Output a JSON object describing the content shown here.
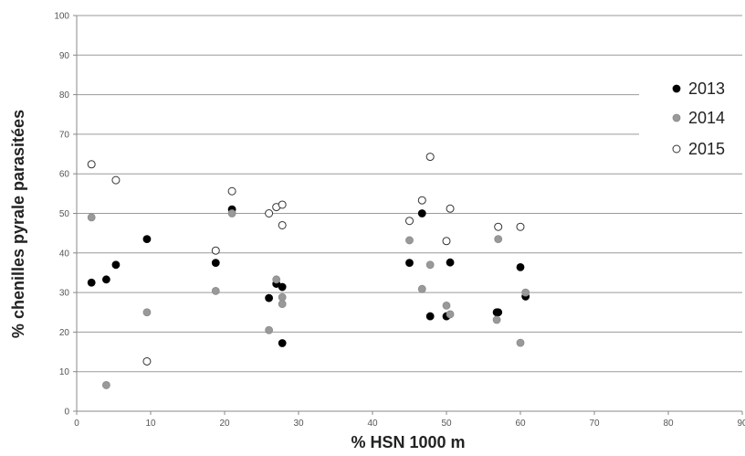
{
  "chart_data": {
    "type": "scatter",
    "xlabel": "% HSN 1000 m",
    "ylabel": "% chenilles pyrale parasitées",
    "xlim": [
      0,
      90
    ],
    "ylim": [
      0,
      100
    ],
    "x_ticks": [
      "0",
      "10",
      "20",
      "30",
      "40",
      "50",
      "60",
      "70",
      "80",
      "90"
    ],
    "y_ticks": [
      "0",
      "10",
      "20",
      "30",
      "40",
      "50",
      "60",
      "70",
      "80",
      "90",
      "100"
    ],
    "grid": "horizontal",
    "legend_position": "right",
    "series": [
      {
        "name": "2013",
        "color": "#000000",
        "marker": "filled-circle",
        "points": [
          [
            2,
            32.5
          ],
          [
            4,
            33.3
          ],
          [
            5.3,
            37
          ],
          [
            9.5,
            43.5
          ],
          [
            18.8,
            37.5
          ],
          [
            21,
            51
          ],
          [
            26,
            28.6
          ],
          [
            27,
            32.2
          ],
          [
            27.8,
            31.4
          ],
          [
            27.8,
            17.2
          ],
          [
            45,
            37.5
          ],
          [
            46.7,
            50
          ],
          [
            47.8,
            24
          ],
          [
            50,
            24
          ],
          [
            50.5,
            37.6
          ],
          [
            56.8,
            25
          ],
          [
            57,
            25
          ],
          [
            60,
            36.4
          ],
          [
            60.7,
            29
          ]
        ]
      },
      {
        "name": "2014",
        "color": "#999999",
        "marker": "filled-circle",
        "points": [
          [
            2,
            49
          ],
          [
            4,
            6.6
          ],
          [
            9.5,
            25
          ],
          [
            18.8,
            30.4
          ],
          [
            21,
            50
          ],
          [
            26,
            20.5
          ],
          [
            27,
            33.3
          ],
          [
            27.8,
            28.8
          ],
          [
            27.8,
            27.1
          ],
          [
            45,
            43.2
          ],
          [
            46.7,
            30.9
          ],
          [
            47.8,
            37
          ],
          [
            50,
            26.7
          ],
          [
            50.5,
            24.5
          ],
          [
            56.8,
            23.1
          ],
          [
            57,
            43.5
          ],
          [
            60,
            17.3
          ],
          [
            60.7,
            30
          ]
        ]
      },
      {
        "name": "2015",
        "color": "#ffffff",
        "stroke": "#333333",
        "marker": "open-circle",
        "points": [
          [
            2,
            62.4
          ],
          [
            5.3,
            58.4
          ],
          [
            9.5,
            12.6
          ],
          [
            18.8,
            40.6
          ],
          [
            21,
            55.6
          ],
          [
            26,
            50
          ],
          [
            27,
            51.6
          ],
          [
            27.8,
            52.2
          ],
          [
            27.8,
            47
          ],
          [
            45,
            48.1
          ],
          [
            46.7,
            53.3
          ],
          [
            47.8,
            64.3
          ],
          [
            50,
            43
          ],
          [
            50.5,
            51.2
          ],
          [
            57,
            46.6
          ],
          [
            60,
            46.6
          ]
        ]
      }
    ]
  }
}
